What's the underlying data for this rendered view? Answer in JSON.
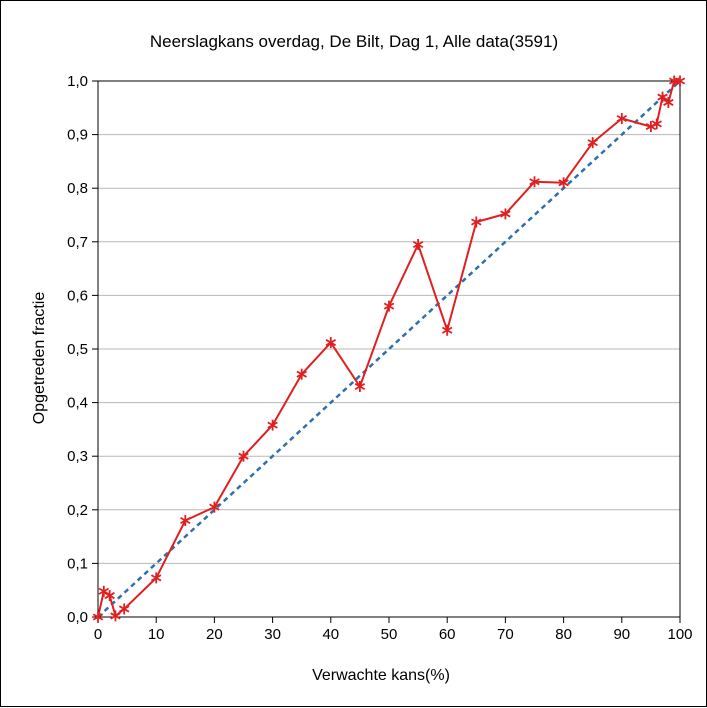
{
  "chart_data": {
    "type": "line",
    "title": "Neerslagkans overdag, De Bilt, Dag 1, Alle data(3591)",
    "xlabel": "Verwachte kans(%)",
    "ylabel": "Opgetreden fractie",
    "xlim": [
      0,
      100
    ],
    "ylim": [
      0,
      1.0
    ],
    "x_ticks": [
      "0",
      "10",
      "20",
      "30",
      "40",
      "50",
      "60",
      "70",
      "80",
      "90",
      "100"
    ],
    "y_ticks": [
      "0,0",
      "0,1",
      "0,2",
      "0,3",
      "0,4",
      "0,5",
      "0,6",
      "0,7",
      "0,8",
      "0,9",
      "1,0"
    ],
    "grid": "horizontal",
    "series": [
      {
        "color": "#e02020",
        "marker": "asterisk",
        "line_style": "solid",
        "points": [
          [
            0,
            0.0
          ],
          [
            1,
            0.048
          ],
          [
            2,
            0.04
          ],
          [
            3,
            0.002
          ],
          [
            4.5,
            0.015
          ],
          [
            10,
            0.073
          ],
          [
            15,
            0.18
          ],
          [
            20,
            0.205
          ],
          [
            25,
            0.3
          ],
          [
            30,
            0.358
          ],
          [
            35,
            0.453
          ],
          [
            40,
            0.512
          ],
          [
            45,
            0.43
          ],
          [
            50,
            0.58
          ],
          [
            55,
            0.695
          ],
          [
            60,
            0.535
          ],
          [
            65,
            0.737
          ],
          [
            70,
            0.752
          ],
          [
            75,
            0.812
          ],
          [
            80,
            0.81
          ],
          [
            85,
            0.885
          ],
          [
            90,
            0.93
          ],
          [
            95,
            0.915
          ],
          [
            96,
            0.92
          ],
          [
            97,
            0.97
          ],
          [
            98,
            0.96
          ],
          [
            99,
            1.0
          ],
          [
            100,
            1.0
          ]
        ]
      },
      {
        "color": "#2e6fb0",
        "marker": "none",
        "line_style": "dashed",
        "points": [
          [
            0,
            0.0
          ],
          [
            100,
            1.0
          ]
        ]
      }
    ]
  }
}
